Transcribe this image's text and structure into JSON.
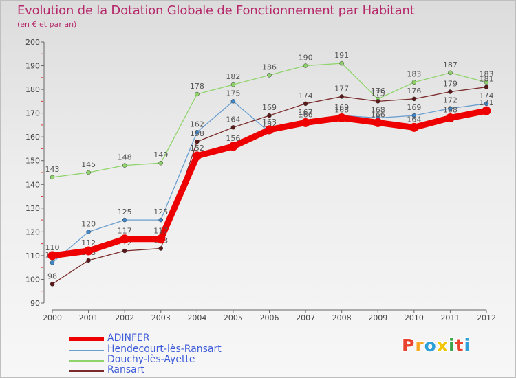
{
  "header": {
    "title": "Evolution de la Dotation Globale de Fonctionnement par Habitant",
    "subtitle": "(en € et par an)"
  },
  "brand": {
    "text": "Proxiti",
    "colors": [
      "#e8432d",
      "#f5a623",
      "#2f9fd8",
      "#f2c500",
      "#3aa64a",
      "#e8432d",
      "#2f9fd8"
    ]
  },
  "colors": {
    "title": "#b5286a",
    "legend_text": "#3d5bd9",
    "axis": "#666666"
  },
  "chart_data": {
    "type": "line",
    "title": "Evolution de la Dotation Globale de Fonctionnement par Habitant",
    "subtitle": "(en € et par an)",
    "xlabel": "",
    "ylabel": "",
    "x": [
      2000,
      2001,
      2002,
      2003,
      2004,
      2005,
      2006,
      2007,
      2008,
      2009,
      2010,
      2011,
      2012
    ],
    "ylim": [
      90,
      200
    ],
    "yticks": [
      90,
      100,
      110,
      120,
      130,
      140,
      150,
      160,
      170,
      180,
      190,
      200
    ],
    "grid": false,
    "legend_position": "bottom-left",
    "series": [
      {
        "name": "Douchy-lès-Ayette",
        "color": "#8fd46a",
        "marker": "#8fd46a",
        "values": [
          143,
          145,
          148,
          149,
          178,
          182,
          186,
          190,
          191,
          176,
          183,
          187,
          183
        ],
        "labels": [
          "143",
          "145",
          "148",
          "149",
          "178",
          "182",
          "186",
          "190",
          "191",
          "176",
          "183",
          "187",
          "183"
        ]
      },
      {
        "name": "Hendecourt-lès-Ransart",
        "color": "#6a9fd0",
        "marker": "#3f88cc",
        "values": [
          107,
          120,
          125,
          125,
          162,
          175,
          162,
          167,
          169,
          168,
          169,
          172,
          174
        ],
        "labels": [
          "107",
          "120",
          "125",
          "125",
          "162",
          "175",
          "162",
          "167",
          "169",
          "168",
          "169",
          "172",
          "174"
        ]
      },
      {
        "name": "Ransart",
        "color": "#7a2a2a",
        "marker": "#5a1818",
        "values": [
          98,
          108,
          112,
          113,
          158,
          164,
          169,
          174,
          177,
          175,
          176,
          179,
          181
        ],
        "labels": [
          "98",
          "108",
          "112",
          "113",
          "158",
          "164",
          "169",
          "174",
          "177",
          "175",
          "176",
          "179",
          "181"
        ]
      },
      {
        "name": "ADINFER",
        "color": "#ee0000",
        "marker": "#ee0000",
        "values": [
          110,
          112,
          117,
          117,
          152,
          156,
          163,
          166,
          168,
          166,
          164,
          168,
          171
        ],
        "labels": [
          "110",
          "112",
          "117",
          "117",
          "152",
          "156",
          "163",
          "166",
          "168",
          "166",
          "164",
          "168",
          "171"
        ]
      }
    ],
    "legend": [
      "ADINFER",
      "Hendecourt-lès-Ransart",
      "Douchy-lès-Ayette",
      "Ransart"
    ]
  }
}
